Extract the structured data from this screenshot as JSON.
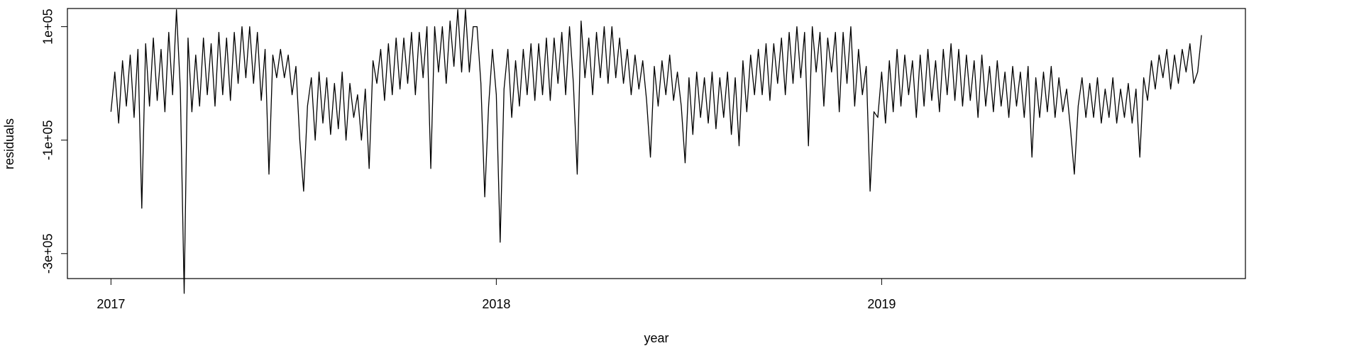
{
  "chart_data": {
    "type": "line",
    "xlabel": "year",
    "ylabel": "residuals",
    "color": "#000000",
    "x": [
      2017,
      2017.01,
      2017.02,
      2017.03,
      2017.04,
      2017.05,
      2017.06,
      2017.07,
      2017.08,
      2017.09,
      2017.1,
      2017.11,
      2017.12,
      2017.13,
      2017.14,
      2017.15,
      2017.16,
      2017.17,
      2017.18,
      2017.19,
      2017.2,
      2017.21,
      2017.22,
      2017.23,
      2017.24,
      2017.25,
      2017.26,
      2017.27,
      2017.28,
      2017.29,
      2017.3,
      2017.31,
      2017.32,
      2017.33,
      2017.34,
      2017.35,
      2017.36,
      2017.37,
      2017.38,
      2017.39,
      2017.4,
      2017.41,
      2017.42,
      2017.43,
      2017.44,
      2017.45,
      2017.46,
      2017.47,
      2017.48,
      2017.49,
      2017.5,
      2017.51,
      2017.52,
      2017.53,
      2017.54,
      2017.55,
      2017.56,
      2017.57,
      2017.58,
      2017.59,
      2017.6,
      2017.61,
      2017.62,
      2017.63,
      2017.64,
      2017.65,
      2017.66,
      2017.67,
      2017.68,
      2017.69,
      2017.7,
      2017.71,
      2017.72,
      2017.73,
      2017.74,
      2017.75,
      2017.76,
      2017.77,
      2017.78,
      2017.79,
      2017.8,
      2017.81,
      2017.82,
      2017.83,
      2017.84,
      2017.85,
      2017.86,
      2017.87,
      2017.88,
      2017.89,
      2017.9,
      2017.91,
      2017.92,
      2017.93,
      2017.94,
      2017.95,
      2017.96,
      2017.97,
      2017.98,
      2017.99,
      2018,
      2018.01,
      2018.02,
      2018.03,
      2018.04,
      2018.05,
      2018.06,
      2018.07,
      2018.08,
      2018.09,
      2018.1,
      2018.11,
      2018.12,
      2018.13,
      2018.14,
      2018.15,
      2018.16,
      2018.17,
      2018.18,
      2018.19,
      2018.2,
      2018.21,
      2018.22,
      2018.23,
      2018.24,
      2018.25,
      2018.26,
      2018.27,
      2018.28,
      2018.29,
      2018.3,
      2018.31,
      2018.32,
      2018.33,
      2018.34,
      2018.35,
      2018.36,
      2018.37,
      2018.38,
      2018.39,
      2018.4,
      2018.41,
      2018.42,
      2018.43,
      2018.44,
      2018.45,
      2018.46,
      2018.47,
      2018.48,
      2018.49,
      2018.5,
      2018.51,
      2018.52,
      2018.53,
      2018.54,
      2018.55,
      2018.56,
      2018.57,
      2018.58,
      2018.59,
      2018.6,
      2018.61,
      2018.62,
      2018.63,
      2018.64,
      2018.65,
      2018.66,
      2018.67,
      2018.68,
      2018.69,
      2018.7,
      2018.71,
      2018.72,
      2018.73,
      2018.74,
      2018.75,
      2018.76,
      2018.77,
      2018.78,
      2018.79,
      2018.8,
      2018.81,
      2018.82,
      2018.83,
      2018.84,
      2018.85,
      2018.86,
      2018.87,
      2018.88,
      2018.89,
      2018.9,
      2018.91,
      2018.92,
      2018.93,
      2018.94,
      2018.95,
      2018.96,
      2018.97,
      2018.98,
      2018.99,
      2019,
      2019.01,
      2019.02,
      2019.03,
      2019.04,
      2019.05,
      2019.06,
      2019.07,
      2019.08,
      2019.09,
      2019.1,
      2019.11,
      2019.12,
      2019.13,
      2019.14,
      2019.15,
      2019.16,
      2019.17,
      2019.18,
      2019.19,
      2019.2,
      2019.21,
      2019.22,
      2019.23,
      2019.24,
      2019.25,
      2019.26,
      2019.27,
      2019.28,
      2019.29,
      2019.3,
      2019.31,
      2019.32,
      2019.33,
      2019.34,
      2019.35,
      2019.36,
      2019.37,
      2019.38,
      2019.39,
      2019.4,
      2019.41,
      2019.42,
      2019.43,
      2019.44,
      2019.45,
      2019.46,
      2019.47,
      2019.48,
      2019.49,
      2019.5,
      2019.51,
      2019.52,
      2019.53,
      2019.54,
      2019.55,
      2019.56,
      2019.57,
      2019.58,
      2019.59,
      2019.6,
      2019.61,
      2019.62,
      2019.63,
      2019.64,
      2019.65,
      2019.66,
      2019.67,
      2019.68,
      2019.69,
      2019.7,
      2019.71,
      2019.72,
      2019.73,
      2019.74,
      2019.75,
      2019.76,
      2019.77,
      2019.78,
      2019.79,
      2019.8,
      2019.81,
      2019.82,
      2019.83
    ],
    "values": [
      -50000,
      20000,
      -70000,
      40000,
      -40000,
      50000,
      -60000,
      60000,
      -220000,
      70000,
      -40000,
      80000,
      -30000,
      60000,
      -50000,
      90000,
      -20000,
      130000,
      -10000,
      -370000,
      80000,
      -50000,
      50000,
      -40000,
      80000,
      -20000,
      70000,
      -40000,
      90000,
      -20000,
      80000,
      -30000,
      90000,
      0,
      100000,
      10000,
      100000,
      0,
      90000,
      -30000,
      60000,
      -160000,
      50000,
      10000,
      60000,
      10000,
      50000,
      -20000,
      30000,
      -100000,
      -190000,
      -40000,
      10000,
      -100000,
      20000,
      -70000,
      10000,
      -90000,
      0,
      -80000,
      20000,
      -100000,
      0,
      -60000,
      -20000,
      -100000,
      -10000,
      -150000,
      40000,
      0,
      60000,
      -30000,
      70000,
      -20000,
      80000,
      -10000,
      80000,
      0,
      90000,
      -20000,
      90000,
      10000,
      100000,
      -150000,
      100000,
      20000,
      100000,
      0,
      110000,
      30000,
      130000,
      20000,
      130000,
      20000,
      100000,
      100000,
      0,
      -200000,
      -40000,
      60000,
      -20000,
      -280000,
      -10000,
      60000,
      -60000,
      40000,
      -40000,
      60000,
      -20000,
      70000,
      -30000,
      70000,
      -20000,
      80000,
      -30000,
      80000,
      0,
      90000,
      -20000,
      100000,
      0,
      -160000,
      110000,
      10000,
      80000,
      -20000,
      90000,
      10000,
      100000,
      0,
      100000,
      10000,
      80000,
      0,
      60000,
      -20000,
      50000,
      -10000,
      40000,
      -30000,
      -130000,
      30000,
      -40000,
      40000,
      -20000,
      50000,
      -30000,
      20000,
      -40000,
      -140000,
      10000,
      -90000,
      20000,
      -60000,
      10000,
      -70000,
      20000,
      -80000,
      10000,
      -60000,
      20000,
      -90000,
      10000,
      -110000,
      40000,
      -50000,
      50000,
      -20000,
      60000,
      -20000,
      70000,
      -30000,
      70000,
      0,
      80000,
      -20000,
      90000,
      0,
      100000,
      10000,
      90000,
      -110000,
      100000,
      20000,
      90000,
      -40000,
      80000,
      20000,
      90000,
      -50000,
      90000,
      0,
      100000,
      -40000,
      60000,
      -20000,
      30000,
      -190000,
      -50000,
      -60000,
      20000,
      -70000,
      40000,
      -50000,
      60000,
      -40000,
      50000,
      -20000,
      40000,
      -60000,
      50000,
      -40000,
      60000,
      -30000,
      40000,
      -50000,
      60000,
      -20000,
      70000,
      -30000,
      60000,
      -40000,
      50000,
      -30000,
      40000,
      -60000,
      50000,
      -40000,
      30000,
      -50000,
      40000,
      -40000,
      20000,
      -60000,
      30000,
      -40000,
      20000,
      -60000,
      30000,
      -130000,
      10000,
      -60000,
      20000,
      -50000,
      30000,
      -60000,
      10000,
      -50000,
      -10000,
      -80000,
      -160000,
      -40000,
      10000,
      -60000,
      0,
      -60000,
      10000,
      -70000,
      -10000,
      -60000,
      10000,
      -70000,
      -10000,
      -60000,
      0,
      -70000,
      -10000,
      -130000,
      10000,
      -30000,
      40000,
      -10000,
      50000,
      10000,
      60000,
      -10000,
      50000,
      0,
      60000,
      20000,
      70000,
      0,
      20000,
      85000
    ],
    "xlim": [
      2016.887,
      2019.944
    ],
    "xticks": [
      2017,
      2018,
      2019
    ],
    "ylim": [
      -344000,
      132000
    ],
    "yticks": [
      {
        "value": -300000,
        "label": "-3e+05"
      },
      {
        "value": -100000,
        "label": "-1e+05"
      },
      {
        "value": 100000,
        "label": "1e+05"
      }
    ]
  }
}
